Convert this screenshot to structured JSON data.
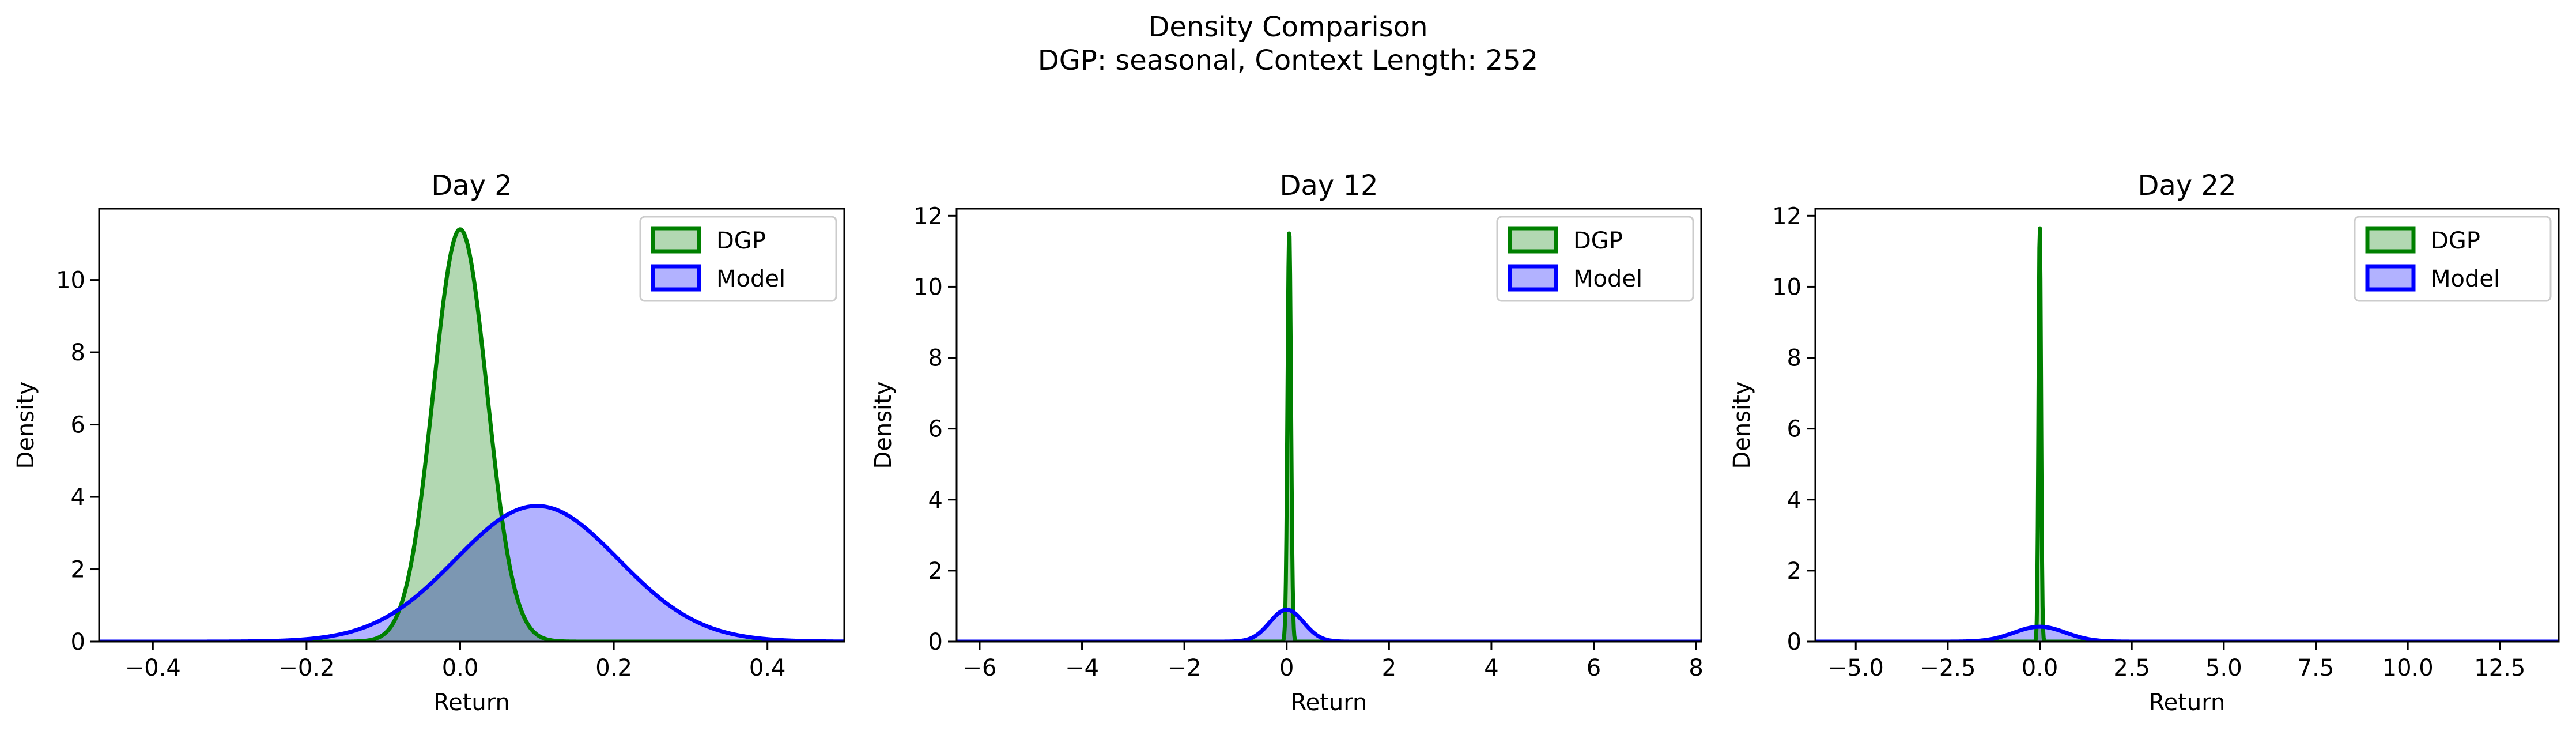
{
  "suptitle": {
    "line1": "Density Comparison",
    "line2": "DGP: seasonal, Context Length: 252"
  },
  "colors": {
    "dgp_line": "#008000",
    "dgp_fill": "#b2d8b2",
    "model_line": "#0000ff",
    "model_fill": "#b2b2ff",
    "axes": "#000000"
  },
  "chart_data": [
    {
      "type": "area",
      "title": "Day 2",
      "xlabel": "Return",
      "ylabel": "Density",
      "xlim": [
        -0.47,
        0.5
      ],
      "ylim": [
        0,
        11.97
      ],
      "xticks": [
        -0.4,
        -0.2,
        0.0,
        0.2,
        0.4
      ],
      "xtick_labels": [
        "−0.4",
        "−0.2",
        "0.0",
        "0.2",
        "0.4"
      ],
      "yticks": [
        0,
        2,
        4,
        6,
        8,
        10
      ],
      "ytick_labels": [
        "0",
        "2",
        "4",
        "6",
        "8",
        "10"
      ],
      "legend": "top-right",
      "series": [
        {
          "name": "DGP",
          "mean": 0.0,
          "sd": 0.035,
          "peak": 11.4
        },
        {
          "name": "Model",
          "mean": 0.1,
          "sd": 0.106,
          "peak": 3.75
        }
      ]
    },
    {
      "type": "area",
      "title": "Day 12",
      "xlabel": "Return",
      "ylabel": "Density",
      "xlim": [
        -6.45,
        8.1
      ],
      "ylim": [
        0,
        12.2
      ],
      "xticks": [
        -6,
        -4,
        -2,
        0,
        2,
        4,
        6,
        8
      ],
      "xtick_labels": [
        "−6",
        "−4",
        "−2",
        "0",
        "2",
        "4",
        "6",
        "8"
      ],
      "yticks": [
        0,
        2,
        4,
        6,
        8,
        10,
        12
      ],
      "ytick_labels": [
        "0",
        "2",
        "4",
        "6",
        "8",
        "10",
        "12"
      ],
      "legend": "top-right",
      "series": [
        {
          "name": "DGP",
          "mean": 0.05,
          "sd": 0.034,
          "peak": 11.6
        },
        {
          "name": "Model",
          "mean": 0.0,
          "sd": 0.33,
          "peak": 0.9
        }
      ]
    },
    {
      "type": "area",
      "title": "Day 22",
      "xlabel": "Return",
      "ylabel": "Density",
      "xlim": [
        -6.1,
        14.1
      ],
      "ylim": [
        0,
        12.2
      ],
      "xticks": [
        -5.0,
        -2.5,
        0.0,
        2.5,
        5.0,
        7.5,
        10.0,
        12.5
      ],
      "xtick_labels": [
        "−5.0",
        "−2.5",
        "0.0",
        "2.5",
        "5.0",
        "7.5",
        "10.0",
        "12.5"
      ],
      "yticks": [
        0,
        2,
        4,
        6,
        8,
        10,
        12
      ],
      "ytick_labels": [
        "0",
        "2",
        "4",
        "6",
        "8",
        "10",
        "12"
      ],
      "legend": "top-right",
      "series": [
        {
          "name": "DGP",
          "mean": 0.0,
          "sd": 0.034,
          "peak": 11.7
        },
        {
          "name": "Model",
          "mean": 0.0,
          "sd": 0.7,
          "peak": 0.42
        }
      ]
    }
  ]
}
